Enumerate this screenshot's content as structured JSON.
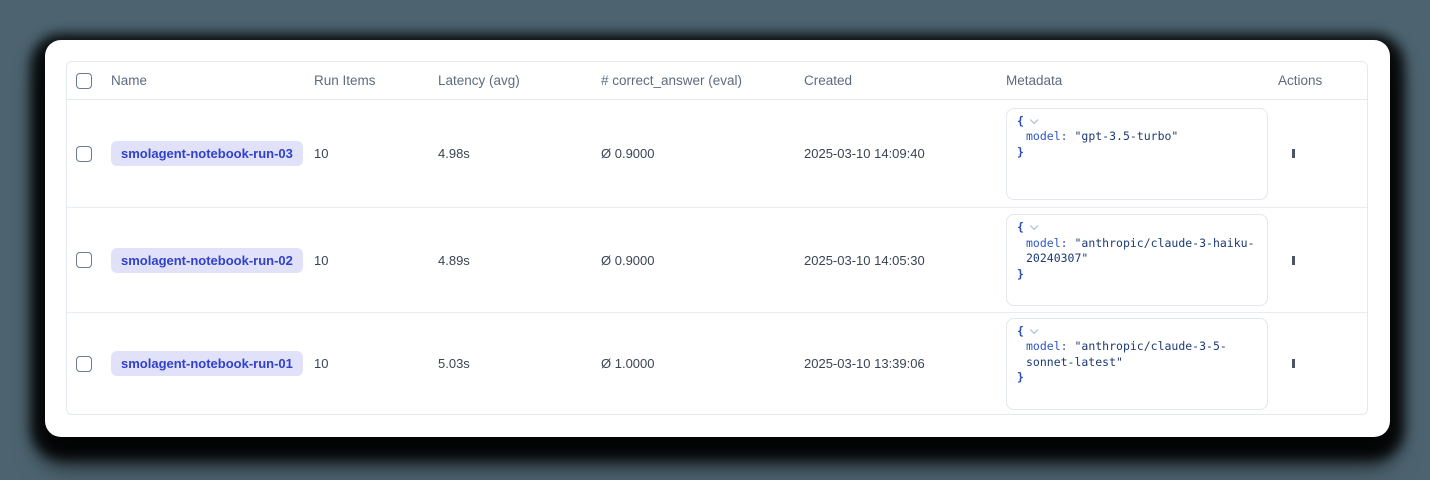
{
  "page": {
    "background_color": "#4d6470",
    "card_color": "#ffffff"
  },
  "table": {
    "columns": [
      {
        "key": "select",
        "label": ""
      },
      {
        "key": "name",
        "label": "Name"
      },
      {
        "key": "run_items",
        "label": "Run Items"
      },
      {
        "key": "latency",
        "label": "Latency (avg)"
      },
      {
        "key": "correct_answer",
        "label": "# correct_answer (eval)"
      },
      {
        "key": "created",
        "label": "Created"
      },
      {
        "key": "metadata",
        "label": "Metadata"
      },
      {
        "key": "actions",
        "label": "Actions"
      }
    ],
    "rows": [
      {
        "name": "smolagent-notebook-run-03",
        "run_items": "10",
        "latency": "4.98s",
        "correct_answer": "Ø 0.9000",
        "created": "2025-03-10 14:09:40",
        "metadata": {
          "key": "model",
          "value": "\"gpt-3.5-turbo\""
        }
      },
      {
        "name": "smolagent-notebook-run-02",
        "run_items": "10",
        "latency": "4.89s",
        "correct_answer": "Ø 0.9000",
        "created": "2025-03-10 14:05:30",
        "metadata": {
          "key": "model",
          "value": "\"anthropic/claude-3-haiku-20240307\""
        }
      },
      {
        "name": "smolagent-notebook-run-01",
        "run_items": "10",
        "latency": "5.03s",
        "correct_answer": "Ø 1.0000",
        "created": "2025-03-10 13:39:06",
        "metadata": {
          "key": "model",
          "value": "\"anthropic/claude-3-5-sonnet-latest\""
        }
      }
    ]
  },
  "metadata_widget": {
    "open_brace": "{",
    "close_brace": "}",
    "key_separator": ": "
  },
  "colors": {
    "badge_bg": "#e1e2fa",
    "badge_text": "#3141cb",
    "json_key": "#2e56c6",
    "json_value": "#1c3a74",
    "table_border": "#e4e9f0"
  }
}
